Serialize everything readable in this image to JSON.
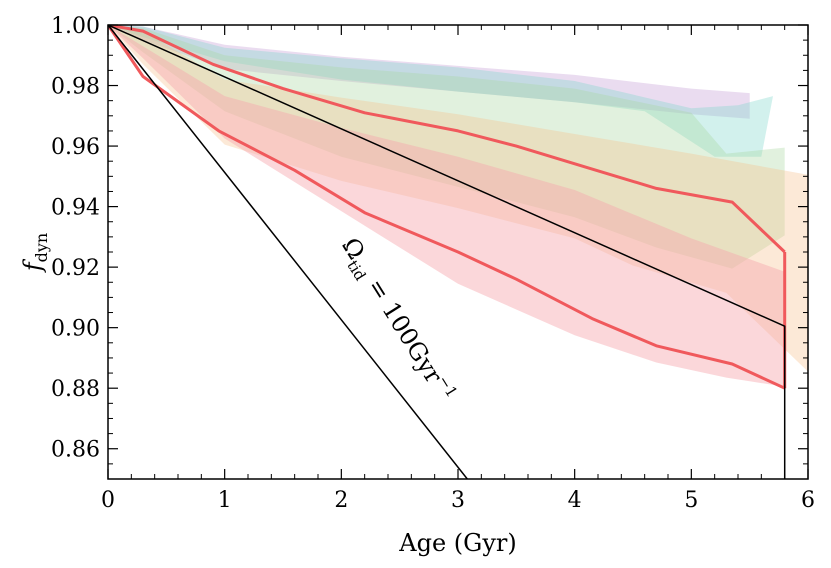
{
  "chart_data": {
    "type": "line",
    "xlabel": "Age (Gyr)",
    "ylabel_main": "f",
    "ylabel_sub": "dyn",
    "xlim": [
      0,
      6
    ],
    "ylim": [
      0.85,
      1.0
    ],
    "xticks": [
      "0",
      "1",
      "2",
      "3",
      "4",
      "5",
      "6"
    ],
    "yticks": [
      "0.86",
      "0.88",
      "0.90",
      "0.92",
      "0.94",
      "0.96",
      "0.98",
      "1.00"
    ],
    "bands": [
      {
        "name": "purple-band",
        "color": "#c39bd3",
        "opacity": 0.35,
        "polygon": [
          [
            0,
            1.0
          ],
          [
            0.3,
            0.9995
          ],
          [
            1.0,
            0.9935
          ],
          [
            2.0,
            0.9895
          ],
          [
            3.0,
            0.9865
          ],
          [
            4.0,
            0.9835
          ],
          [
            5.0,
            0.979
          ],
          [
            5.5,
            0.9775
          ],
          [
            5.5,
            0.969
          ],
          [
            5.0,
            0.9705
          ],
          [
            4.0,
            0.9745
          ],
          [
            3.0,
            0.978
          ],
          [
            2.0,
            0.9815
          ],
          [
            1.0,
            0.9855
          ],
          [
            0.3,
            0.995
          ]
        ]
      },
      {
        "name": "cyan-band",
        "color": "#7fd6cc",
        "opacity": 0.35,
        "polygon": [
          [
            0,
            1.0
          ],
          [
            0.3,
            0.9995
          ],
          [
            1.0,
            0.9925
          ],
          [
            2.0,
            0.989
          ],
          [
            3.0,
            0.986
          ],
          [
            4.0,
            0.9815
          ],
          [
            5.0,
            0.9725
          ],
          [
            5.4,
            0.9735
          ],
          [
            5.7,
            0.9765
          ],
          [
            5.6,
            0.9565
          ],
          [
            5.2,
            0.9565
          ],
          [
            4.6,
            0.9715
          ],
          [
            4.0,
            0.9745
          ],
          [
            3.0,
            0.978
          ],
          [
            2.0,
            0.982
          ],
          [
            1.0,
            0.988
          ],
          [
            0.3,
            0.996
          ]
        ]
      },
      {
        "name": "green-band",
        "color": "#a8d8a0",
        "opacity": 0.35,
        "polygon": [
          [
            0,
            1.0
          ],
          [
            0.3,
            0.999
          ],
          [
            1.0,
            0.99
          ],
          [
            2.0,
            0.986
          ],
          [
            3.0,
            0.983
          ],
          [
            4.0,
            0.979
          ],
          [
            5.0,
            0.971
          ],
          [
            5.3,
            0.9575
          ],
          [
            5.8,
            0.9595
          ],
          [
            5.8,
            0.9305
          ],
          [
            5.35,
            0.9195
          ],
          [
            4.7,
            0.9265
          ],
          [
            4.0,
            0.9365
          ],
          [
            3.0,
            0.9465
          ],
          [
            2.0,
            0.9565
          ],
          [
            1.0,
            0.9715
          ],
          [
            0.3,
            0.991
          ]
        ]
      },
      {
        "name": "orange-band",
        "color": "#f5c18b",
        "opacity": 0.35,
        "polygon": [
          [
            0,
            1.0
          ],
          [
            0.3,
            0.998
          ],
          [
            1.0,
            0.982
          ],
          [
            2.0,
            0.976
          ],
          [
            3.0,
            0.9705
          ],
          [
            4.0,
            0.964
          ],
          [
            5.0,
            0.9575
          ],
          [
            6.0,
            0.9505
          ],
          [
            6.0,
            0.8855
          ],
          [
            5.3,
            0.9115
          ],
          [
            4.5,
            0.9205
          ],
          [
            4.0,
            0.9295
          ],
          [
            3.0,
            0.9395
          ],
          [
            2.0,
            0.9485
          ],
          [
            1.0,
            0.9605
          ],
          [
            0.3,
            0.987
          ]
        ]
      },
      {
        "name": "pink-band",
        "color": "#f7a6ad",
        "opacity": 0.45,
        "polygon": [
          [
            0,
            1.0
          ],
          [
            0.3,
            0.993
          ],
          [
            1.0,
            0.9765
          ],
          [
            2.0,
            0.966
          ],
          [
            3.0,
            0.9565
          ],
          [
            4.0,
            0.9455
          ],
          [
            5.0,
            0.9295
          ],
          [
            5.8,
            0.9185
          ],
          [
            5.8,
            0.8805
          ],
          [
            5.3,
            0.8835
          ],
          [
            4.7,
            0.8885
          ],
          [
            4.0,
            0.8975
          ],
          [
            3.0,
            0.9145
          ],
          [
            2.0,
            0.9385
          ],
          [
            1.0,
            0.9625
          ],
          [
            0.3,
            0.989
          ]
        ]
      }
    ],
    "series": [
      {
        "name": "upper-red-line",
        "color": "#f0595c",
        "width": 3,
        "points": [
          [
            0,
            1.0
          ],
          [
            0.3,
            0.998
          ],
          [
            0.9,
            0.987
          ],
          [
            1.5,
            0.979
          ],
          [
            2.2,
            0.971
          ],
          [
            3.0,
            0.965
          ],
          [
            3.5,
            0.96
          ],
          [
            4.1,
            0.953
          ],
          [
            4.7,
            0.946
          ],
          [
            5.35,
            0.9415
          ],
          [
            5.8,
            0.925
          ]
        ]
      },
      {
        "name": "lower-red-line",
        "color": "#f0595c",
        "width": 3,
        "points": [
          [
            0,
            1.0
          ],
          [
            0.3,
            0.983
          ],
          [
            0.95,
            0.965
          ],
          [
            1.6,
            0.952
          ],
          [
            2.2,
            0.938
          ],
          [
            3.0,
            0.925
          ],
          [
            3.5,
            0.916
          ],
          [
            4.15,
            0.903
          ],
          [
            4.7,
            0.894
          ],
          [
            5.35,
            0.888
          ],
          [
            5.8,
            0.88
          ]
        ]
      },
      {
        "name": "red-connector-line",
        "color": "#f0595c",
        "width": 3,
        "points": [
          [
            5.8,
            0.925
          ],
          [
            5.8,
            0.88
          ]
        ]
      },
      {
        "name": "black-reference-line",
        "color": "#000000",
        "width": 1.5,
        "points": [
          [
            0,
            1.0
          ],
          [
            5.8,
            0.9005
          ],
          [
            5.8,
            0.85
          ]
        ]
      },
      {
        "name": "omega-tid-line",
        "color": "#000000",
        "width": 1.5,
        "points": [
          [
            0,
            1.0
          ],
          [
            3.08,
            0.85
          ]
        ]
      }
    ],
    "annotation": {
      "omega": "Ω",
      "sub": "tid",
      "rest": " = 100Gyr",
      "sup": "−1",
      "x": 2.0,
      "y": 0.9275,
      "angle_deg": 58
    }
  }
}
